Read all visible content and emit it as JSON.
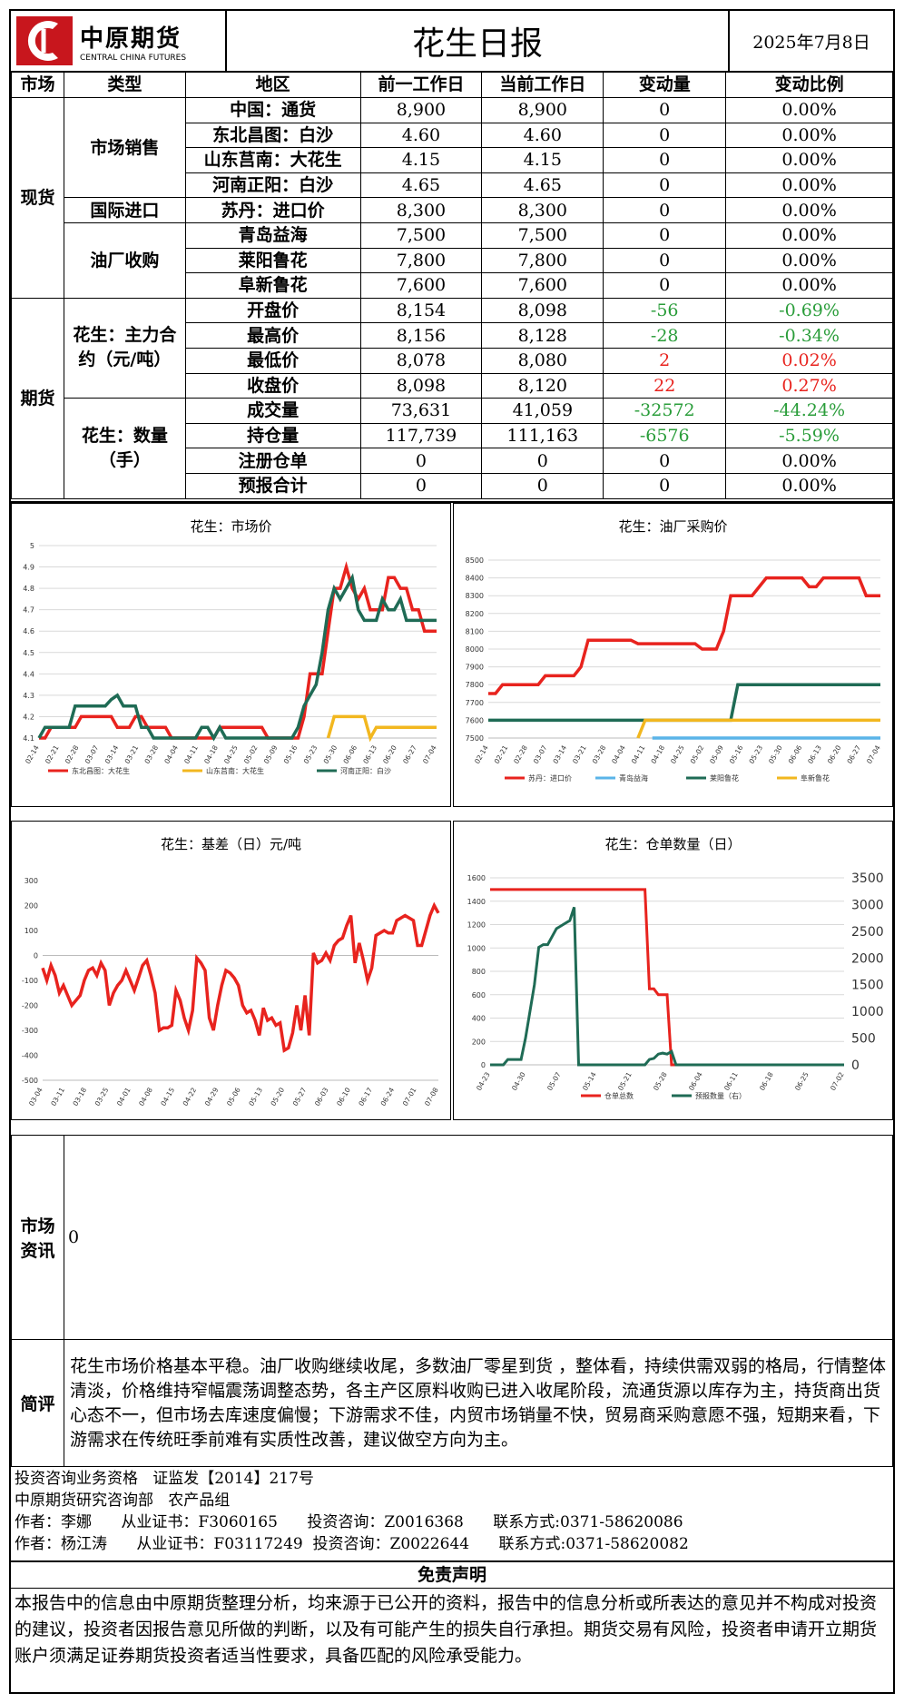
{
  "header": {
    "logo_cn": "中原期货",
    "logo_en": "CENTRAL CHINA FUTURES",
    "title": "花生日报",
    "date": "2025年7月8日"
  },
  "table": {
    "columns": [
      "市场",
      "类型",
      "地区",
      "前一工作日",
      "当前工作日",
      "变动量",
      "变动比例"
    ],
    "spot_label": "现货",
    "futures_label": "期货",
    "group_market": "市场销售",
    "group_import": "国际进口",
    "group_oil": "油厂收购",
    "group_main": "花生：主力合约（元/吨）",
    "group_qty": "花生：数量（手）",
    "rows": [
      {
        "region": "中国：通货",
        "prev": "8,900",
        "curr": "8,900",
        "chg": "0",
        "pct": "0.00%"
      },
      {
        "region": "东北昌图：白沙",
        "prev": "4.60",
        "curr": "4.60",
        "chg": "0",
        "pct": "0.00%"
      },
      {
        "region": "山东莒南：大花生",
        "prev": "4.15",
        "curr": "4.15",
        "chg": "0",
        "pct": "0.00%"
      },
      {
        "region": "河南正阳：白沙",
        "prev": "4.65",
        "curr": "4.65",
        "chg": "0",
        "pct": "0.00%"
      },
      {
        "region": "苏丹：进口价",
        "prev": "8,300",
        "curr": "8,300",
        "chg": "0",
        "pct": "0.00%"
      },
      {
        "region": "青岛益海",
        "prev": "7,500",
        "curr": "7,500",
        "chg": "0",
        "pct": "0.00%"
      },
      {
        "region": "莱阳鲁花",
        "prev": "7,800",
        "curr": "7,800",
        "chg": "0",
        "pct": "0.00%"
      },
      {
        "region": "阜新鲁花",
        "prev": "7,600",
        "curr": "7,600",
        "chg": "0",
        "pct": "0.00%"
      },
      {
        "region": "开盘价",
        "prev": "8,154",
        "curr": "8,098",
        "chg": "-56",
        "pct": "-0.69%"
      },
      {
        "region": "最高价",
        "prev": "8,156",
        "curr": "8,128",
        "chg": "-28",
        "pct": "-0.34%"
      },
      {
        "region": "最低价",
        "prev": "8,078",
        "curr": "8,080",
        "chg": "2",
        "pct": "0.02%"
      },
      {
        "region": "收盘价",
        "prev": "8,098",
        "curr": "8,120",
        "chg": "22",
        "pct": "0.27%"
      },
      {
        "region": "成交量",
        "prev": "73,631",
        "curr": "41,059",
        "chg": "-32572",
        "pct": "-44.24%"
      },
      {
        "region": "持仓量",
        "prev": "117,739",
        "curr": "111,163",
        "chg": "-6576",
        "pct": "-5.59%"
      },
      {
        "region": "注册仓单",
        "prev": "0",
        "curr": "0",
        "chg": "0",
        "pct": "0.00%"
      },
      {
        "region": "预报合计",
        "prev": "0",
        "curr": "0",
        "chg": "0",
        "pct": "0.00%"
      }
    ]
  },
  "colors": {
    "red": "#e8231e",
    "green": "#2a9d3a",
    "darkgreen": "#1f6b55",
    "yellow": "#f2b71f",
    "blue": "#5ab4e8"
  },
  "chart_data": [
    {
      "type": "line",
      "title": "花生：市场价",
      "ylim": [
        4.1,
        5.0
      ],
      "yticks": [
        "4.1",
        "4.2",
        "4.3",
        "4.4",
        "4.5",
        "4.6",
        "4.7",
        "4.8",
        "4.9",
        "5"
      ],
      "xticks": [
        "02-14",
        "02-21",
        "02-28",
        "03-07",
        "03-14",
        "03-21",
        "03-28",
        "04-04",
        "04-11",
        "04-18",
        "04-25",
        "05-02",
        "05-09",
        "05-16",
        "05-23",
        "05-30",
        "06-06",
        "06-13",
        "06-20",
        "06-27",
        "07-04"
      ],
      "series": [
        {
          "name": "东北昌图：大花生",
          "color": "#e8231e",
          "values": [
            4.1,
            4.1,
            4.15,
            4.15,
            4.15,
            4.15,
            4.15,
            4.2,
            4.2,
            4.2,
            4.2,
            4.2,
            4.2,
            4.15,
            4.15,
            4.15,
            4.2,
            4.2,
            4.15,
            4.15,
            4.15,
            4.15,
            4.1,
            4.1,
            4.1,
            4.1,
            4.1,
            4.1,
            4.1,
            4.1,
            4.15,
            4.15,
            4.15,
            4.15,
            4.15,
            4.15,
            4.15,
            4.15,
            4.1,
            4.1,
            4.1,
            4.1,
            4.1,
            4.1,
            4.2,
            4.4,
            4.4,
            4.4,
            4.6,
            4.8,
            4.8,
            4.9,
            4.8,
            4.75,
            4.8,
            4.7,
            4.7,
            4.7,
            4.85,
            4.85,
            4.8,
            4.8,
            4.7,
            4.7,
            4.6,
            4.6,
            4.6
          ]
        },
        {
          "name": "山东莒南：大花生",
          "color": "#f2b71f",
          "values": [
            null,
            null,
            null,
            null,
            null,
            null,
            null,
            null,
            null,
            null,
            null,
            null,
            null,
            null,
            null,
            null,
            null,
            null,
            null,
            null,
            null,
            null,
            null,
            null,
            null,
            null,
            null,
            null,
            null,
            null,
            null,
            null,
            null,
            null,
            null,
            null,
            null,
            null,
            null,
            null,
            null,
            null,
            null,
            null,
            null,
            null,
            null,
            null,
            4.1,
            4.2,
            4.2,
            4.2,
            4.2,
            4.2,
            4.2,
            4.1,
            4.15,
            4.15,
            4.15,
            4.15,
            4.15,
            4.15,
            4.15,
            4.15,
            4.15,
            4.15,
            4.15
          ]
        },
        {
          "name": "河南正阳：白沙",
          "color": "#1f6b55",
          "values": [
            4.1,
            4.15,
            4.15,
            4.15,
            4.15,
            4.15,
            4.25,
            4.25,
            4.25,
            4.25,
            4.25,
            4.25,
            4.28,
            4.3,
            4.25,
            4.25,
            4.25,
            4.15,
            4.15,
            4.1,
            4.1,
            4.1,
            4.1,
            4.1,
            4.1,
            4.1,
            4.1,
            4.15,
            4.15,
            4.1,
            4.15,
            4.1,
            4.1,
            4.1,
            4.1,
            4.1,
            4.1,
            4.1,
            4.1,
            4.1,
            4.1,
            4.1,
            4.1,
            4.15,
            4.25,
            4.3,
            4.35,
            4.5,
            4.7,
            4.8,
            4.75,
            4.8,
            4.85,
            4.7,
            4.65,
            4.65,
            4.65,
            4.75,
            4.7,
            4.7,
            4.75,
            4.65,
            4.65,
            4.65,
            4.65,
            4.65,
            4.65
          ]
        }
      ]
    },
    {
      "type": "line",
      "title": "花生：油厂采购价",
      "ylim": [
        7500,
        8500
      ],
      "yticks": [
        "7500",
        "7600",
        "7700",
        "7800",
        "7900",
        "8000",
        "8100",
        "8200",
        "8300",
        "8400",
        "8500"
      ],
      "xticks": [
        "02-14",
        "02-21",
        "02-28",
        "03-07",
        "03-14",
        "03-21",
        "03-28",
        "04-04",
        "04-11",
        "04-18",
        "04-25",
        "05-02",
        "05-09",
        "05-16",
        "05-23",
        "05-30",
        "06-06",
        "06-13",
        "06-20",
        "06-27",
        "07-04"
      ],
      "series": [
        {
          "name": "苏丹：进口价",
          "color": "#e8231e",
          "values": [
            7750,
            7750,
            7800,
            7800,
            7800,
            7800,
            7800,
            7800,
            7850,
            7850,
            7850,
            7850,
            7850,
            7900,
            8050,
            8050,
            8050,
            8050,
            8050,
            8050,
            8050,
            8030,
            8030,
            8030,
            8030,
            8030,
            8030,
            8030,
            8030,
            8030,
            8000,
            8000,
            8000,
            8100,
            8300,
            8300,
            8300,
            8300,
            8350,
            8400,
            8400,
            8400,
            8400,
            8400,
            8400,
            8350,
            8350,
            8400,
            8400,
            8400,
            8400,
            8400,
            8400,
            8300,
            8300,
            8300
          ]
        },
        {
          "name": "青岛益海",
          "color": "#5ab4e8",
          "values": [
            null,
            null,
            null,
            null,
            null,
            null,
            null,
            null,
            null,
            null,
            null,
            null,
            null,
            null,
            null,
            null,
            null,
            null,
            null,
            null,
            null,
            null,
            null,
            7500,
            7500,
            7500,
            7500,
            7500,
            7500,
            7500,
            7500,
            7500,
            7500,
            7500,
            7500,
            7500,
            7500,
            7500,
            7500,
            7500,
            7500,
            7500,
            7500,
            7500,
            7500,
            7500,
            7500,
            7500,
            7500,
            7500,
            7500,
            7500,
            7500,
            7500,
            7500,
            7500
          ]
        },
        {
          "name": "莱阳鲁花",
          "color": "#1f6b55",
          "values": [
            7600,
            7600,
            7600,
            7600,
            7600,
            7600,
            7600,
            7600,
            7600,
            7600,
            7600,
            7600,
            7600,
            7600,
            7600,
            7600,
            7600,
            7600,
            7600,
            7600,
            7600,
            7600,
            7600,
            7600,
            7600,
            7600,
            7600,
            7600,
            7600,
            7600,
            7600,
            7600,
            7600,
            7600,
            7600,
            7800,
            7800,
            7800,
            7800,
            7800,
            7800,
            7800,
            7800,
            7800,
            7800,
            7800,
            7800,
            7800,
            7800,
            7800,
            7800,
            7800,
            7800,
            7800,
            7800,
            7800
          ]
        },
        {
          "name": "阜新鲁花",
          "color": "#f2b71f",
          "values": [
            null,
            null,
            null,
            null,
            null,
            null,
            null,
            null,
            null,
            null,
            null,
            null,
            null,
            null,
            null,
            null,
            null,
            null,
            null,
            null,
            null,
            7500,
            7600,
            7600,
            7600,
            7600,
            7600,
            7600,
            7600,
            7600,
            7600,
            7600,
            7600,
            7600,
            7600,
            7600,
            7600,
            7600,
            7600,
            7600,
            7600,
            7600,
            7600,
            7600,
            7600,
            7600,
            7600,
            7600,
            7600,
            7600,
            7600,
            7600,
            7600,
            7600,
            7600,
            7600
          ]
        }
      ]
    },
    {
      "type": "line",
      "title": "花生：基差（日）元/吨",
      "ylim": [
        -500,
        300
      ],
      "yticks": [
        "-500",
        "-400",
        "-300",
        "-200",
        "-100",
        "0",
        "100",
        "200",
        "300"
      ],
      "xticks": [
        "03-04",
        "03-11",
        "03-18",
        "03-25",
        "04-01",
        "04-08",
        "04-15",
        "04-22",
        "04-29",
        "05-06",
        "05-13",
        "05-20",
        "05-27",
        "06-03",
        "06-10",
        "06-17",
        "06-24",
        "07-01",
        "07-08"
      ],
      "series": [
        {
          "name": "",
          "color": "#e8231e",
          "values": [
            -50,
            -100,
            -40,
            -80,
            -150,
            -120,
            -160,
            -200,
            -180,
            -160,
            -100,
            -60,
            -50,
            -80,
            -30,
            -60,
            -200,
            -150,
            -120,
            -100,
            -60,
            -100,
            -140,
            -90,
            -40,
            -20,
            -80,
            -150,
            -300,
            -290,
            -290,
            -280,
            -140,
            -180,
            -250,
            -300,
            -220,
            -10,
            -30,
            -60,
            -250,
            -300,
            -200,
            -120,
            -60,
            -70,
            -90,
            -120,
            -200,
            -230,
            -220,
            -260,
            -320,
            -210,
            -260,
            -250,
            -280,
            -270,
            -380,
            -370,
            -310,
            -200,
            -300,
            -160,
            -320,
            10,
            -30,
            -20,
            10,
            -20,
            40,
            60,
            70,
            120,
            160,
            -30,
            50,
            -20,
            -100,
            -50,
            80,
            90,
            100,
            90,
            90,
            140,
            150,
            160,
            150,
            140,
            40,
            40,
            100,
            160,
            200,
            170
          ]
        }
      ]
    },
    {
      "type": "line",
      "title": "花生：仓单数量（日）",
      "ylim": [
        0,
        1600
      ],
      "y2lim": [
        0,
        3500
      ],
      "yticks": [
        "0",
        "200",
        "400",
        "600",
        "800",
        "1000",
        "1200",
        "1400",
        "1600"
      ],
      "y2ticks": [
        "0",
        "500",
        "1000",
        "1500",
        "2000",
        "2500",
        "3000",
        "3500"
      ],
      "xticks": [
        "04-23",
        "04-30",
        "05-07",
        "05-14",
        "05-21",
        "05-28",
        "06-04",
        "06-11",
        "06-18",
        "06-25",
        "07-02"
      ],
      "series": [
        {
          "name": "仓单总数",
          "color": "#e8231e",
          "values": [
            1500,
            1500,
            1500,
            1500,
            1500,
            1500,
            1500,
            1500,
            1500,
            1500,
            1500,
            1500,
            1500,
            1500,
            1500,
            1500,
            1500,
            1500,
            1500,
            1500,
            1500,
            1500,
            1500,
            1500,
            1500,
            1500,
            1500,
            1500,
            1500,
            1500,
            1500,
            1500,
            1500,
            1500,
            1500,
            1500,
            650,
            650,
            600,
            600,
            600,
            0,
            0,
            0,
            0,
            0,
            0,
            0,
            0,
            0,
            0,
            0,
            0,
            0,
            0,
            0,
            0,
            0,
            0,
            0,
            0,
            0,
            0,
            0,
            0,
            0,
            0,
            0,
            0,
            0,
            0,
            0,
            0,
            0,
            0,
            0,
            0,
            0,
            0,
            0,
            0
          ]
        },
        {
          "name": "预报数量（右）",
          "color": "#1f6b55",
          "values": [
            0,
            0,
            0,
            0,
            100,
            100,
            100,
            100,
            500,
            1000,
            1500,
            2200,
            2250,
            2250,
            2400,
            2550,
            2600,
            2650,
            2700,
            2950,
            0,
            0,
            0,
            0,
            0,
            0,
            0,
            0,
            0,
            0,
            0,
            0,
            0,
            0,
            0,
            0,
            100,
            120,
            200,
            220,
            200,
            250,
            0,
            0,
            0,
            0,
            0,
            0,
            0,
            0,
            0,
            0,
            0,
            0,
            0,
            0,
            0,
            0,
            0,
            0,
            0,
            0,
            0,
            0,
            0,
            0,
            0,
            0,
            0,
            0,
            0,
            0,
            0,
            0,
            0,
            0,
            0,
            0,
            0,
            0,
            0
          ]
        }
      ]
    }
  ],
  "info": {
    "market_label": "市场资讯",
    "market_text": "0",
    "comment_label": "简评",
    "comment_text": "花生市场价格基本平稳。油厂收购继续收尾，多数油厂零星到货 ，整体看，持续供需双弱的格局，行情整体清淡，价格维持窄幅震荡调整态势，各主产区原料收购已进入收尾阶段，流通货源以库存为主，持货商出货心态不一，但市场去库速度偏慢；下游需求不佳，内贸市场销量不快，贸易商采购意愿不强，短期来看，下游需求在传统旺季前难有实质性改善，建议做空方向为主。"
  },
  "footer": {
    "line1": "投资咨询业务资格   证监发【2014】217号",
    "line2": "中原期货研究咨询部   农产品组",
    "line3": "作者：李娜      从业证书：F3060165      投资咨询：Z0016368      联系方式:0371-58620086",
    "line4": "作者：杨江涛      从业证书：F03117249  投资咨询：Z0022644      联系方式:0371-58620082",
    "disclaimer_title": "免责声明",
    "disclaimer_text": "本报告中的信息由中原期货整理分析，均来源于已公开的资料，报告中的信息分析或所表达的意见并不构成对投资的建议，投资者因报告意见所做的判断，以及有可能产生的损失自行承担。期货交易有风险，投资者申请开立期货账户须满足证券期货投资者适当性要求，具备匹配的风险承受能力。"
  }
}
